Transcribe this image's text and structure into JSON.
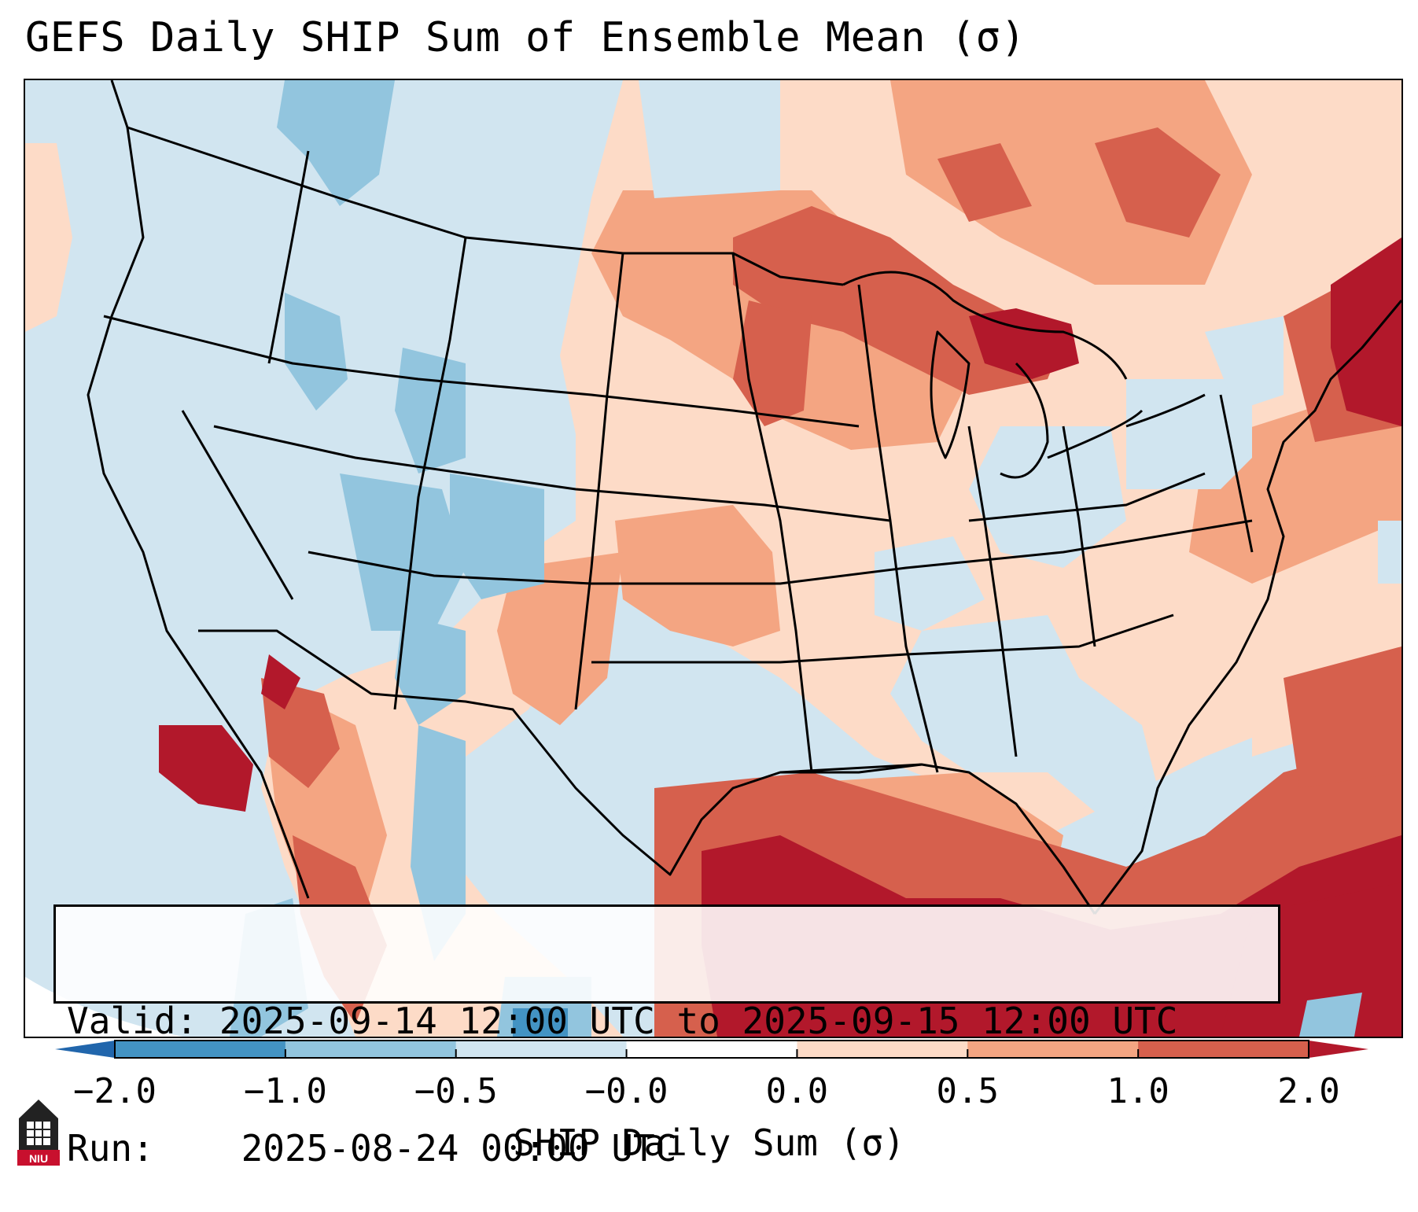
{
  "title": "GEFS Daily SHIP Sum of Ensemble Mean (σ)",
  "info": {
    "valid_label": "Valid:",
    "valid_value": "2025-09-14 12:00 UTC to 2025-09-15 12:00 UTC",
    "run_label": "Run:",
    "run_value": "2025-08-24 00:00 UTC"
  },
  "colorbar": {
    "label": "SHIP Daily Sum (σ)",
    "ticks": [
      "−2.0",
      "−1.0",
      "−0.5",
      "−0.0",
      "0.0",
      "0.5",
      "1.0",
      "2.0"
    ],
    "bin_colors": [
      "#2166ac",
      "#4393c3",
      "#92c5de",
      "#d1e5f0",
      "#ffffff",
      "#fddbc7",
      "#f4a582",
      "#d6604d",
      "#b2182b"
    ]
  },
  "map": {
    "region": "Contiguous United States",
    "colors": {
      "neg_strong": "#4393c3",
      "neg_mid": "#92c5de",
      "neg_weak": "#d1e5f0",
      "pos_weak": "#fddbc7",
      "pos_mid": "#f4a582",
      "pos_high": "#d6604d",
      "pos_strong": "#b2182b",
      "border": "#000000"
    }
  },
  "logo": {
    "text": "NIU",
    "name": "NIU logo"
  }
}
